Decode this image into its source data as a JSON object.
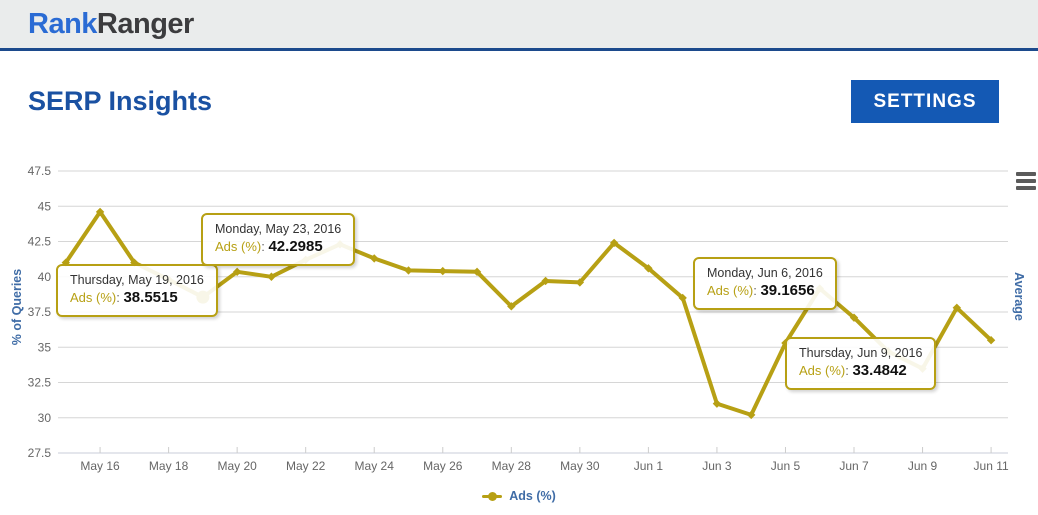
{
  "header": {
    "logo_part1": "Rank",
    "logo_part2": "Ranger"
  },
  "page": {
    "title": "SERP Insights",
    "settings_button": "SETTINGS"
  },
  "chart_data": {
    "type": "line",
    "series_name": "Ads (%)",
    "title": "",
    "ylabel": "% of Queries",
    "right_ylabel": "Average",
    "xlabel": "",
    "grid": true,
    "legend_position": "bottom",
    "line_color": "#b7a014",
    "ylim": [
      27.5,
      47.5
    ],
    "y_tick_step": 2.5,
    "y_tick_labels": [
      "47.5",
      "45",
      "42.5",
      "40",
      "37.5",
      "35",
      "32.5",
      "30",
      "27.5"
    ],
    "x": [
      "May 15",
      "May 16",
      "May 17",
      "May 18",
      "May 19",
      "May 20",
      "May 21",
      "May 22",
      "May 23",
      "May 24",
      "May 25",
      "May 26",
      "May 27",
      "May 28",
      "May 29",
      "May 30",
      "May 31",
      "Jun 1",
      "Jun 2",
      "Jun 3",
      "Jun 4",
      "Jun 5",
      "Jun 6",
      "Jun 7",
      "Jun 8",
      "Jun 9",
      "Jun 10",
      "Jun 11"
    ],
    "values": [
      41.0,
      44.6,
      41.0,
      39.8,
      38.5515,
      40.35,
      40.0,
      41.2,
      42.2985,
      41.3,
      40.45,
      40.4,
      40.35,
      37.9,
      39.7,
      39.6,
      42.4,
      40.6,
      38.5,
      31.0,
      30.2,
      35.3,
      39.1656,
      37.1,
      34.7,
      33.4842,
      37.8,
      35.5
    ],
    "x_tick_indices": [
      1,
      3,
      5,
      7,
      9,
      11,
      13,
      15,
      17,
      19,
      21,
      23,
      25,
      27
    ],
    "x_tick_labels": [
      "May 16",
      "May 18",
      "May 20",
      "May 22",
      "May 24",
      "May 26",
      "May 28",
      "May 30",
      "Jun 1",
      "Jun 3",
      "Jun 5",
      "Jun 7",
      "Jun 9",
      "Jun 11"
    ],
    "highlighted_point": {
      "x": "May 19",
      "index": 4,
      "value": 38.5515
    }
  },
  "tooltip_common": {
    "sep": ": "
  },
  "tooltips": [
    {
      "date": "Thursday, May 19, 2016",
      "series_label": "Ads (%)",
      "value": "38.5515"
    },
    {
      "date": "Monday, May 23, 2016",
      "series_label": "Ads (%)",
      "value": "42.2985"
    },
    {
      "date": "Monday, Jun 6, 2016",
      "series_label": "Ads (%)",
      "value": "39.1656"
    },
    {
      "date": "Thursday, Jun 9, 2016",
      "series_label": "Ads (%)",
      "value": "33.4842"
    }
  ],
  "icons": {
    "chart_menu": "hamburger-icon"
  },
  "colors": {
    "accent_blue": "#1459b4",
    "title_blue": "#1a51a2",
    "logo_blue": "#2a6bd4",
    "header_border": "#1c4a8c",
    "series_gold": "#b7a014",
    "axis_label_gray": "#666666",
    "axis_title_blue": "#3f6ca6",
    "grid_gray": "#d6d6d6"
  }
}
